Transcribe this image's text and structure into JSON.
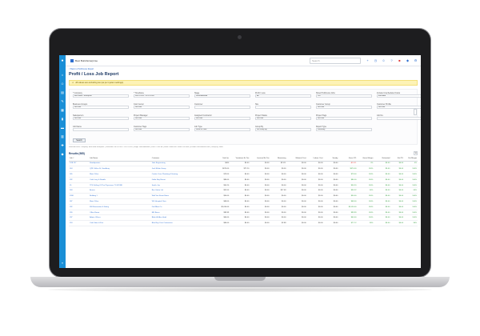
{
  "app": {
    "company": "Best Build Enterprise",
    "search_placeholder": "Search",
    "breadcrumb": "< Back to Profit/Loss Report",
    "title": "Profit / Loss Job Report",
    "warning": "All values are excluding tax (as per system settings).",
    "search_button": "Search",
    "criteria": "Selected filters: Company: Best Build Enterprise | Timeframe: 08/12/2020 - 02/12/2020 | Stage: Work Awarded | Profit / Loss: All | Show Profit/Loss: Show Lost Jobs | Include Unscheduled Jobs | Group by: None",
    "results_label": "Results (985)",
    "expand_icon": "expand-icon"
  },
  "filters": [
    {
      "label": "* Company",
      "value": "Best Build - Enterprise"
    },
    {
      "label": "* Timeframe",
      "value": "08/12/2020 - 02/12/2020"
    },
    {
      "label": "Stage",
      "value": "Work Awarded"
    },
    {
      "label": "Profit / Loss",
      "value": "All"
    },
    {
      "label": "Show Profit/Loss Jobs",
      "value": "Yes"
    },
    {
      "label": "Include Unscheduled Costs",
      "value": "Excluded"
    },
    {
      "label": "Business Groups",
      "value": "No Filter"
    },
    {
      "label": "Cost Center",
      "value": "No Filter"
    },
    {
      "label": "Customer",
      "value": ""
    },
    {
      "label": "Site",
      "value": ""
    },
    {
      "label": "Customer Group",
      "value": "No Filter"
    },
    {
      "label": "Customer Profile",
      "value": "No Filter"
    },
    {
      "label": "Salesperson",
      "value": "No Filter"
    },
    {
      "label": "Project Manager",
      "value": "No Filter"
    },
    {
      "label": "Assigned Contractor",
      "value": "No Filter"
    },
    {
      "label": "Project Status",
      "value": "No Filter"
    },
    {
      "label": "Project Tags",
      "value": "No Filter"
    },
    {
      "label": "Job No.",
      "value": ""
    },
    {
      "label": "Job Name",
      "value": ""
    },
    {
      "label": "Customer Tags",
      "value": "No Filter"
    },
    {
      "label": "Job Type",
      "value": "Show all Jobs"
    },
    {
      "label": "Group By",
      "value": "No Group By"
    },
    {
      "label": "Report Type",
      "value": "Summary"
    }
  ],
  "table": {
    "headers": [
      "Job #",
      "Job Name",
      "Customer",
      "Sale Inc",
      "Variations Ex Tax",
      "Invoiced Ex Tax",
      "Remaining",
      "Material Cost",
      "Labour Cost",
      "Sundry",
      "Gross P/L",
      "Gross Margin",
      "Estimated",
      "Est P/L",
      "Est Margin"
    ],
    "rows": [
      [
        "JOB 117",
        "Headquarters",
        "Jobs Engineering",
        "$400",
        "$0.00",
        "$0.00",
        "$13.11",
        "$0.00",
        "$0.00",
        "$0.00",
        "-$13.11",
        "0%",
        "$0.00",
        "$0.00",
        "0%"
      ],
      [
        "J44",
        "Q28 Collins St, Sandberg",
        "Jack Mulan Group",
        "$670.00",
        "$72.20",
        "$0.00",
        "$0.00",
        "$0.00",
        "$0.00",
        "$0.00",
        "$670.00",
        "100%",
        "$0.00",
        "$0.00",
        "100%"
      ],
      [
        "J65",
        "Main Office",
        "Cookie Cove Plumbing & Heating",
        "$79.00",
        "$0.00",
        "$0.00",
        "$0.00",
        "$0.00",
        "$0.00",
        "$0.00",
        "$79.00",
        "100%",
        "$0.00",
        "$0.00",
        "100%"
      ],
      [
        "J92",
        "Cafe Larry & Noodle",
        "Dollar Bay Resort",
        "$84.00",
        "$0.00",
        "$0.00",
        "$0.00",
        "$0.00",
        "$0.00",
        "$0.00",
        "$84.00",
        "100%",
        "$0.00",
        "$0.00",
        "100%"
      ],
      [
        "J5",
        "TPS Drilling Of The Physicians TO WORK",
        "Smith, Joe",
        "$50.20",
        "$0.00",
        "$0.00",
        "$0.00",
        "$0.00",
        "$0.00",
        "$0.00",
        "$50.20",
        "100%",
        "$0.00",
        "$0.00",
        "100%"
      ],
      [
        "J84",
        "Aurora",
        "Ben Guitar Ltd",
        "$52.00",
        "$0.00",
        "$0.00",
        "$17.48",
        "$0.00",
        "$0.00",
        "$0.00",
        "$34.52",
        "66%",
        "$0.00",
        "$0.00",
        "66%"
      ],
      [
        "J308",
        "Building 1",
        "Walt Van Street Bears",
        "$50.00",
        "$0.00",
        "$0.00",
        "$0.00",
        "$0.00",
        "$0.00",
        "$0.00",
        "$50.00",
        "100%",
        "$0.00",
        "$0.00",
        "100%"
      ],
      [
        "J87",
        "Main Office",
        "WD Hospital Clinic",
        "$68.00",
        "$0.00",
        "$0.00",
        "$0.00",
        "$0.00",
        "$0.00",
        "$0.00",
        "$68.00",
        "100%",
        "$0.00",
        "$0.00",
        "100%"
      ],
      [
        "J92",
        "FBI Renovation & Salary",
        "Dial Blast Co",
        "$2,050.00",
        "$0.00",
        "$0.00",
        "$0.00",
        "$0.00",
        "$0.00",
        "$0.00",
        "$2,050.00",
        "100%",
        "$0.00",
        "$0.00",
        "100%"
      ],
      [
        "J90",
        "Office Beam",
        "EEI Beers",
        "$99.99",
        "$0.00",
        "$0.00",
        "$0.00",
        "$0.00",
        "$0.00",
        "$0.00",
        "$99.99",
        "100%",
        "$0.00",
        "$0.00",
        "100%"
      ],
      [
        "J97",
        "Admin Offices",
        "Bible Hill Ave Hotel",
        "$60.00",
        "$0.00",
        "$0.00",
        "$0.00",
        "$0.00",
        "$0.00",
        "$0.00",
        "$60.00",
        "100%",
        "$0.00",
        "$0.00",
        "100%"
      ],
      [
        "J53",
        "Cafe Store & Fire",
        "Blue Bay Care Contractors",
        "$80.00",
        "$0.00",
        "$0.00",
        "$2.88",
        "$0.00",
        "$0.00",
        "$0.00",
        "$77.12",
        "96%",
        "$0.00",
        "$0.00",
        "96%"
      ]
    ]
  },
  "colors": {
    "brand": "#1a8fd6",
    "link": "#2f6fd0",
    "positive": "#2e9a3a",
    "negative": "#dd3333",
    "warning_bg": "#fdf3b6"
  }
}
